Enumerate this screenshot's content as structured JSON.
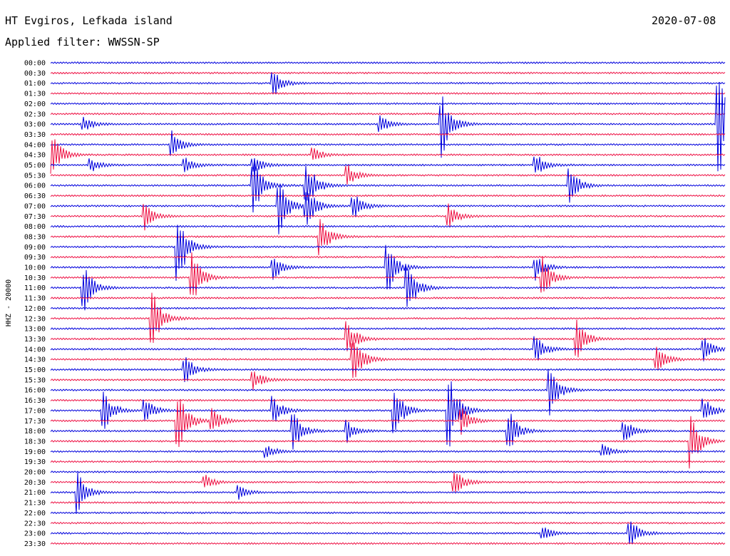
{
  "header": {
    "station": "HT Evgiros, Lefkada island",
    "date": "2020-07-08",
    "filter_label": "Applied filter:",
    "filter_name": "WWSSN-SP"
  },
  "colors": {
    "trace_a": "#0000dd",
    "trace_b": "#ee1144",
    "text": "#000000"
  },
  "chart_data": {
    "type": "line",
    "title": "",
    "ylabel": "HHZ - 20000",
    "rows": [
      "00:00",
      "00:30",
      "01:00",
      "01:30",
      "02:00",
      "02:30",
      "03:00",
      "03:30",
      "04:00",
      "04:30",
      "05:00",
      "05:30",
      "06:00",
      "06:30",
      "07:00",
      "07:30",
      "08:00",
      "08:30",
      "09:00",
      "09:30",
      "10:00",
      "10:30",
      "11:00",
      "11:30",
      "12:00",
      "12:30",
      "13:00",
      "13:30",
      "14:00",
      "14:30",
      "15:00",
      "15:30",
      "16:00",
      "16:30",
      "17:00",
      "17:30",
      "18:00",
      "18:30",
      "19:00",
      "19:30",
      "20:00",
      "20:30",
      "21:00",
      "21:30",
      "22:00",
      "22:30",
      "23:00",
      "23:30"
    ],
    "events": [
      {
        "row": 2,
        "t": 0.33,
        "amp": 1.0
      },
      {
        "row": 6,
        "t": 0.05,
        "amp": 0.5
      },
      {
        "row": 6,
        "t": 0.49,
        "amp": 0.6
      },
      {
        "row": 6,
        "t": 0.58,
        "amp": 2.5
      },
      {
        "row": 6,
        "t": 0.99,
        "amp": 4.5
      },
      {
        "row": 8,
        "t": 0.18,
        "amp": 1.0
      },
      {
        "row": 9,
        "t": 0.0,
        "amp": 2.0
      },
      {
        "row": 9,
        "t": 0.39,
        "amp": 0.5
      },
      {
        "row": 10,
        "t": 0.06,
        "amp": 0.5
      },
      {
        "row": 10,
        "t": 0.2,
        "amp": 0.5
      },
      {
        "row": 10,
        "t": 0.3,
        "amp": 0.8
      },
      {
        "row": 10,
        "t": 0.72,
        "amp": 0.8
      },
      {
        "row": 11,
        "t": 0.44,
        "amp": 0.8
      },
      {
        "row": 12,
        "t": 0.3,
        "amp": 2.5
      },
      {
        "row": 12,
        "t": 0.38,
        "amp": 2.0
      },
      {
        "row": 12,
        "t": 0.77,
        "amp": 1.5
      },
      {
        "row": 14,
        "t": 0.34,
        "amp": 2.0
      },
      {
        "row": 14,
        "t": 0.38,
        "amp": 1.5
      },
      {
        "row": 14,
        "t": 0.45,
        "amp": 1.0
      },
      {
        "row": 15,
        "t": 0.14,
        "amp": 1.0
      },
      {
        "row": 15,
        "t": 0.59,
        "amp": 1.0
      },
      {
        "row": 17,
        "t": 0.4,
        "amp": 1.5
      },
      {
        "row": 18,
        "t": 0.19,
        "amp": 2.5
      },
      {
        "row": 20,
        "t": 0.33,
        "amp": 1.0
      },
      {
        "row": 20,
        "t": 0.5,
        "amp": 2.0
      },
      {
        "row": 20,
        "t": 0.72,
        "amp": 1.0
      },
      {
        "row": 21,
        "t": 0.21,
        "amp": 2.0
      },
      {
        "row": 21,
        "t": 0.73,
        "amp": 1.5
      },
      {
        "row": 22,
        "t": 0.05,
        "amp": 1.8
      },
      {
        "row": 22,
        "t": 0.53,
        "amp": 1.8
      },
      {
        "row": 25,
        "t": 0.15,
        "amp": 2.5
      },
      {
        "row": 27,
        "t": 0.44,
        "amp": 1.5
      },
      {
        "row": 27,
        "t": 0.78,
        "amp": 1.5
      },
      {
        "row": 28,
        "t": 0.72,
        "amp": 1.0
      },
      {
        "row": 28,
        "t": 0.97,
        "amp": 0.8
      },
      {
        "row": 29,
        "t": 0.45,
        "amp": 2.0
      },
      {
        "row": 29,
        "t": 0.9,
        "amp": 1.0
      },
      {
        "row": 30,
        "t": 0.2,
        "amp": 1.0
      },
      {
        "row": 31,
        "t": 0.3,
        "amp": 0.8
      },
      {
        "row": 32,
        "t": 0.74,
        "amp": 2.0
      },
      {
        "row": 34,
        "t": 0.08,
        "amp": 1.5
      },
      {
        "row": 34,
        "t": 0.14,
        "amp": 1.0
      },
      {
        "row": 34,
        "t": 0.33,
        "amp": 1.0
      },
      {
        "row": 34,
        "t": 0.51,
        "amp": 2.0
      },
      {
        "row": 34,
        "t": 0.59,
        "amp": 3.0
      },
      {
        "row": 34,
        "t": 0.97,
        "amp": 1.0
      },
      {
        "row": 35,
        "t": 0.19,
        "amp": 2.5
      },
      {
        "row": 35,
        "t": 0.24,
        "amp": 1.0
      },
      {
        "row": 35,
        "t": 0.61,
        "amp": 1.0
      },
      {
        "row": 36,
        "t": 0.36,
        "amp": 1.5
      },
      {
        "row": 36,
        "t": 0.44,
        "amp": 0.8
      },
      {
        "row": 36,
        "t": 0.68,
        "amp": 1.5
      },
      {
        "row": 36,
        "t": 0.85,
        "amp": 1.0
      },
      {
        "row": 37,
        "t": 0.95,
        "amp": 2.0
      },
      {
        "row": 38,
        "t": 0.32,
        "amp": 0.5
      },
      {
        "row": 38,
        "t": 0.82,
        "amp": 0.5
      },
      {
        "row": 41,
        "t": 0.23,
        "amp": 0.5
      },
      {
        "row": 41,
        "t": 0.6,
        "amp": 1.0
      },
      {
        "row": 42,
        "t": 0.04,
        "amp": 1.5
      },
      {
        "row": 42,
        "t": 0.28,
        "amp": 0.5
      },
      {
        "row": 46,
        "t": 0.73,
        "amp": 0.5
      },
      {
        "row": 46,
        "t": 0.86,
        "amp": 1.0
      }
    ]
  }
}
